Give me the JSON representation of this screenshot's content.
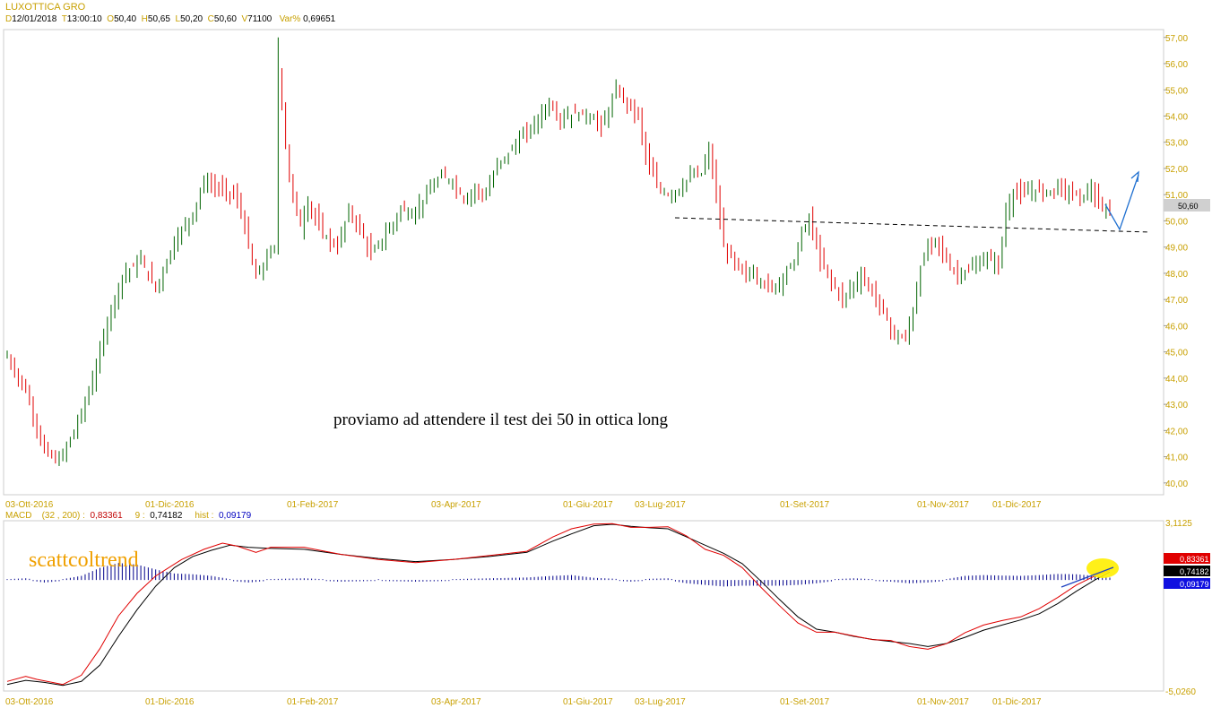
{
  "header": {
    "title": "LUXOTTICA GRO",
    "d_label": "D",
    "date": "12/01/2018",
    "t_label": "T",
    "time": "13:00:10",
    "o_label": "O",
    "open": "50,40",
    "h_label": "H",
    "high": "50,65",
    "l_label": "L",
    "low": "50,20",
    "c_label": "C",
    "close": "50,60",
    "v_label": "V",
    "volume": "71100",
    "var_label": "Var%",
    "var": "0,69651"
  },
  "macd_header": {
    "name": "MACD",
    "params": "(32 , 200) :",
    "macd": "0,83361",
    "signal_label": "9 :",
    "signal": "0,74182",
    "hist_label": "hist :",
    "hist": "0,09179"
  },
  "colors": {
    "up": "#006400",
    "down": "#e00000",
    "macd": "#e00000",
    "signal": "#000000",
    "hist": "#00008b",
    "axis_text": "#c8a000",
    "trend": "#000000",
    "arrow": "#1e6fd0",
    "highlight": "#ffee00"
  },
  "annotation": "proviamo ad attendere il test dei 50 in ottica long",
  "brand": "scattcoltrend",
  "chart_data": [
    {
      "type": "candlestick",
      "title": "LUXOTTICA GRO",
      "y_ticks": [
        "57,00",
        "56,00",
        "55,00",
        "54,00",
        "53,00",
        "52,00",
        "51,00",
        "50,00",
        "49,00",
        "48,00",
        "47,00",
        "46,00",
        "45,00",
        "44,00",
        "43,00",
        "42,00",
        "41,00",
        "40,00"
      ],
      "ylim": [
        39.55,
        57.3
      ],
      "last_price_label": "50,60",
      "x_labels": [
        "03-Ott-2016",
        "01-Dic-2016",
        "01-Feb-2017",
        "03-Apr-2017",
        "01-Giu-2017",
        "03-Lug-2017",
        "01-Set-2017",
        "01-Nov-2017",
        "01-Dic-2017"
      ],
      "path_points": [
        [
          0,
          44.8
        ],
        [
          5,
          43.5
        ],
        [
          10,
          41.2
        ],
        [
          14,
          40.8
        ],
        [
          19,
          42.3
        ],
        [
          22,
          43.5
        ],
        [
          24,
          44.4
        ],
        [
          27,
          46.2
        ],
        [
          31,
          47.9
        ],
        [
          36,
          48.5
        ],
        [
          40,
          47.4
        ],
        [
          45,
          49.2
        ],
        [
          50,
          50.3
        ],
        [
          53,
          51.5
        ],
        [
          56,
          51.3
        ],
        [
          61,
          51.0
        ],
        [
          63,
          50.4
        ],
        [
          65,
          49.0
        ],
        [
          67,
          47.8
        ],
        [
          70,
          48.6
        ],
        [
          72,
          49.0
        ],
        [
          73,
          55.9
        ],
        [
          76,
          51.5
        ],
        [
          79,
          49.8
        ],
        [
          81,
          50.7
        ],
        [
          85,
          49.5
        ],
        [
          89,
          49.0
        ],
        [
          92,
          50.4
        ],
        [
          95,
          49.7
        ],
        [
          98,
          48.7
        ],
        [
          101,
          49.3
        ],
        [
          104,
          49.9
        ],
        [
          106,
          50.5
        ],
        [
          109,
          50.2
        ],
        [
          113,
          51.0
        ],
        [
          117,
          51.7
        ],
        [
          120,
          51.5
        ],
        [
          123,
          50.8
        ],
        [
          126,
          51.2
        ],
        [
          129,
          51.0
        ],
        [
          132,
          52.1
        ],
        [
          135,
          52.6
        ],
        [
          138,
          53.1
        ],
        [
          142,
          53.7
        ],
        [
          146,
          54.5
        ],
        [
          149,
          53.9
        ],
        [
          153,
          54.1
        ],
        [
          157,
          54.0
        ],
        [
          160,
          53.6
        ],
        [
          162,
          54.2
        ],
        [
          164,
          55.0
        ],
        [
          167,
          54.5
        ],
        [
          170,
          54.0
        ],
        [
          172,
          52.5
        ],
        [
          175,
          51.3
        ],
        [
          178,
          51.0
        ],
        [
          181,
          51.2
        ],
        [
          184,
          51.7
        ],
        [
          187,
          51.8
        ],
        [
          189,
          52.7
        ],
        [
          191,
          51.0
        ],
        [
          193,
          49.0
        ],
        [
          195,
          48.6
        ],
        [
          198,
          48.0
        ],
        [
          201,
          48.0
        ],
        [
          204,
          47.6
        ],
        [
          206,
          47.4
        ],
        [
          209,
          47.9
        ],
        [
          212,
          48.5
        ],
        [
          214,
          49.5
        ],
        [
          216,
          50.1
        ],
        [
          219,
          48.5
        ],
        [
          222,
          47.7
        ],
        [
          225,
          47.0
        ],
        [
          228,
          47.6
        ],
        [
          230,
          47.9
        ],
        [
          233,
          47.3
        ],
        [
          236,
          46.5
        ],
        [
          239,
          45.6
        ],
        [
          242,
          45.5
        ],
        [
          244,
          46.6
        ],
        [
          246,
          48.2
        ],
        [
          248,
          49.0
        ],
        [
          250,
          49.3
        ],
        [
          252,
          48.8
        ],
        [
          254,
          48.2
        ],
        [
          256,
          48.0
        ],
        [
          259,
          48.1
        ],
        [
          262,
          48.4
        ],
        [
          264,
          48.6
        ],
        [
          267,
          48.3
        ],
        [
          269,
          50.3
        ],
        [
          271,
          51.1
        ],
        [
          274,
          51.0
        ],
        [
          277,
          51.2
        ],
        [
          280,
          51.1
        ],
        [
          283,
          51.3
        ],
        [
          286,
          51.1
        ],
        [
          289,
          50.9
        ],
        [
          292,
          51.2
        ],
        [
          294,
          50.5
        ],
        [
          296,
          50.4
        ]
      ]
    },
    {
      "type": "line",
      "title": "MACD",
      "x_labels": [
        "03-Ott-2016",
        "01-Dic-2016",
        "01-Feb-2017",
        "03-Apr-2017",
        "01-Giu-2017",
        "03-Lug-2017",
        "01-Set-2017",
        "01-Nov-2017",
        "01-Dic-2017"
      ],
      "ylim": [
        -5.026,
        3.1125
      ],
      "y_ticks": [
        "3,1125",
        "-5,0260"
      ],
      "last_value_labels": [
        "0,83361",
        "0,74182",
        "0,09179"
      ],
      "series": [
        {
          "name": "MACD",
          "points": [
            [
              0,
              -4.6
            ],
            [
              5,
              -4.35
            ],
            [
              8,
              -4.5
            ],
            [
              15,
              -4.75
            ],
            [
              20,
              -4.3
            ],
            [
              25,
              -3.0
            ],
            [
              30,
              -1.4
            ],
            [
              35,
              -0.3
            ],
            [
              40,
              0.55
            ],
            [
              47,
              1.35
            ],
            [
              53,
              1.85
            ],
            [
              58,
              2.15
            ],
            [
              62,
              2.0
            ],
            [
              67,
              1.7
            ],
            [
              71,
              1.95
            ],
            [
              80,
              1.95
            ],
            [
              90,
              1.6
            ],
            [
              100,
              1.35
            ],
            [
              110,
              1.2
            ],
            [
              120,
              1.35
            ],
            [
              130,
              1.55
            ],
            [
              140,
              1.75
            ],
            [
              147,
              2.45
            ],
            [
              152,
              2.85
            ],
            [
              158,
              3.08
            ],
            [
              163,
              3.1
            ],
            [
              168,
              2.92
            ],
            [
              173,
              2.92
            ],
            [
              178,
              2.95
            ],
            [
              183,
              2.5
            ],
            [
              188,
              1.85
            ],
            [
              193,
              1.55
            ],
            [
              198,
              0.95
            ],
            [
              203,
              0.0
            ],
            [
              208,
              -0.9
            ],
            [
              213,
              -1.75
            ],
            [
              218,
              -2.2
            ],
            [
              223,
              -2.2
            ],
            [
              228,
              -2.38
            ],
            [
              233,
              -2.56
            ],
            [
              238,
              -2.6
            ],
            [
              243,
              -2.9
            ],
            [
              248,
              -3.03
            ],
            [
              253,
              -2.76
            ],
            [
              258,
              -2.22
            ],
            [
              263,
              -1.85
            ],
            [
              268,
              -1.63
            ],
            [
              273,
              -1.45
            ],
            [
              278,
              -1.05
            ],
            [
              283,
              -0.5
            ],
            [
              288,
              0.1
            ],
            [
              293,
              0.55
            ],
            [
              297,
              0.83
            ]
          ]
        },
        {
          "name": "Signal",
          "points": [
            [
              0,
              -4.75
            ],
            [
              5,
              -4.55
            ],
            [
              10,
              -4.65
            ],
            [
              15,
              -4.8
            ],
            [
              20,
              -4.6
            ],
            [
              25,
              -3.8
            ],
            [
              30,
              -2.4
            ],
            [
              35,
              -1.1
            ],
            [
              40,
              0.05
            ],
            [
              45,
              0.95
            ],
            [
              50,
              1.5
            ],
            [
              55,
              1.8
            ],
            [
              60,
              2.05
            ],
            [
              65,
              1.95
            ],
            [
              70,
              1.9
            ],
            [
              80,
              1.85
            ],
            [
              90,
              1.6
            ],
            [
              100,
              1.4
            ],
            [
              110,
              1.25
            ],
            [
              120,
              1.35
            ],
            [
              130,
              1.5
            ],
            [
              140,
              1.7
            ],
            [
              147,
              2.25
            ],
            [
              152,
              2.6
            ],
            [
              158,
              3.0
            ],
            [
              163,
              3.07
            ],
            [
              168,
              2.97
            ],
            [
              173,
              2.9
            ],
            [
              178,
              2.85
            ],
            [
              183,
              2.45
            ],
            [
              188,
              2.05
            ],
            [
              193,
              1.65
            ],
            [
              198,
              1.15
            ],
            [
              203,
              0.3
            ],
            [
              208,
              -0.6
            ],
            [
              213,
              -1.45
            ],
            [
              218,
              -2.05
            ],
            [
              223,
              -2.2
            ],
            [
              228,
              -2.4
            ],
            [
              233,
              -2.55
            ],
            [
              238,
              -2.65
            ],
            [
              243,
              -2.75
            ],
            [
              248,
              -2.9
            ],
            [
              253,
              -2.75
            ],
            [
              258,
              -2.45
            ],
            [
              263,
              -2.1
            ],
            [
              268,
              -1.85
            ],
            [
              273,
              -1.6
            ],
            [
              278,
              -1.3
            ],
            [
              283,
              -0.8
            ],
            [
              288,
              -0.2
            ],
            [
              293,
              0.35
            ],
            [
              297,
              0.74
            ]
          ]
        },
        {
          "name": "Hist",
          "points": [
            [
              0,
              0.0
            ],
            [
              5,
              0.05
            ],
            [
              10,
              -0.1
            ],
            [
              15,
              0.0
            ],
            [
              20,
              0.2
            ],
            [
              25,
              0.7
            ],
            [
              30,
              1.0
            ],
            [
              35,
              0.9
            ],
            [
              40,
              0.6
            ],
            [
              45,
              0.35
            ],
            [
              50,
              0.3
            ],
            [
              55,
              0.2
            ],
            [
              60,
              0.0
            ],
            [
              65,
              -0.1
            ],
            [
              70,
              0.0
            ],
            [
              80,
              0.05
            ],
            [
              90,
              -0.05
            ],
            [
              100,
              0.0
            ],
            [
              110,
              -0.05
            ],
            [
              120,
              0.0
            ],
            [
              130,
              0.05
            ],
            [
              140,
              0.1
            ],
            [
              147,
              0.2
            ],
            [
              152,
              0.25
            ],
            [
              158,
              0.08
            ],
            [
              163,
              0.03
            ],
            [
              168,
              -0.05
            ],
            [
              173,
              0.02
            ],
            [
              178,
              0.05
            ],
            [
              183,
              -0.15
            ],
            [
              188,
              -0.25
            ],
            [
              193,
              -0.35
            ],
            [
              198,
              -0.3
            ],
            [
              203,
              -0.3
            ],
            [
              208,
              -0.3
            ],
            [
              213,
              -0.25
            ],
            [
              218,
              -0.15
            ],
            [
              223,
              0.0
            ],
            [
              228,
              0.05
            ],
            [
              233,
              0.0
            ],
            [
              238,
              -0.05
            ],
            [
              243,
              -0.15
            ],
            [
              248,
              -0.1
            ],
            [
              253,
              0.0
            ],
            [
              258,
              0.2
            ],
            [
              263,
              0.25
            ],
            [
              268,
              0.22
            ],
            [
              273,
              0.2
            ],
            [
              278,
              0.25
            ],
            [
              283,
              0.32
            ],
            [
              288,
              0.3
            ],
            [
              293,
              0.2
            ],
            [
              297,
              0.09
            ]
          ]
        }
      ]
    }
  ]
}
